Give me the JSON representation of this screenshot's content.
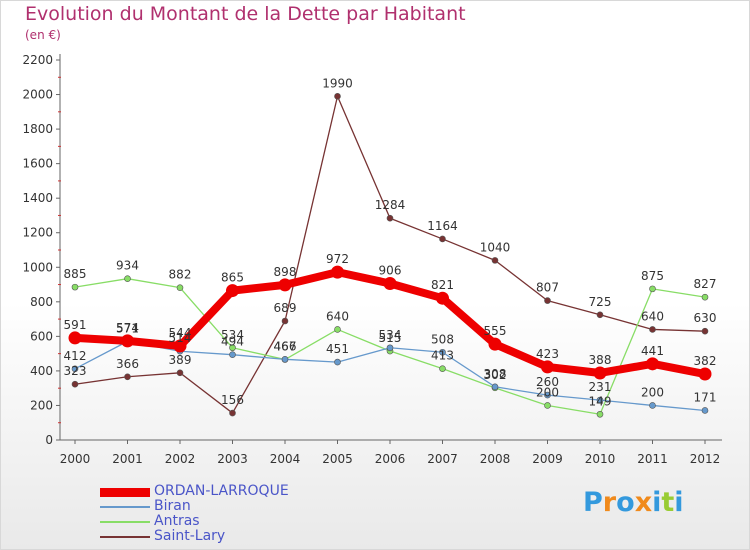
{
  "header": {
    "title": "Evolution du Montant de la Dette par Habitant",
    "subtitle": "(en €)"
  },
  "chart_data": {
    "type": "line",
    "title": "Evolution du Montant de la Dette par Habitant",
    "subtitle": "(en €)",
    "xlabel": "",
    "ylabel": "",
    "categories": [
      "2000",
      "2001",
      "2002",
      "2003",
      "2004",
      "2005",
      "2006",
      "2007",
      "2008",
      "2009",
      "2010",
      "2011",
      "2012"
    ],
    "ylim": [
      0,
      2200
    ],
    "yticks": [
      0,
      200,
      400,
      600,
      800,
      1000,
      1200,
      1400,
      1600,
      1800,
      2000,
      2200
    ],
    "grid": false,
    "legend_position": "bottom-left",
    "series": [
      {
        "name": "ORDAN-LARROQUE",
        "color": "#ee0000",
        "values": [
          591,
          574,
          544,
          865,
          898,
          972,
          906,
          821,
          555,
          423,
          388,
          441,
          382
        ]
      },
      {
        "name": "Biran",
        "color": "#6699cc",
        "values": [
          412,
          571,
          514,
          494,
          467,
          451,
          534,
          508,
          308,
          260,
          231,
          200,
          171
        ]
      },
      {
        "name": "Antras",
        "color": "#88dd66",
        "values": [
          885,
          934,
          882,
          534,
          466,
          640,
          515,
          413,
          302,
          200,
          149,
          875,
          827
        ]
      },
      {
        "name": "Saint-Lary",
        "color": "#773333",
        "values": [
          323,
          366,
          389,
          156,
          689,
          1990,
          1284,
          1164,
          1040,
          807,
          725,
          640,
          630
        ]
      }
    ]
  },
  "logo": {
    "letters": [
      "P",
      "r",
      "o",
      "x",
      "i",
      "t",
      "i"
    ],
    "colors": [
      "#3399dd",
      "#f08a1c",
      "#3399dd",
      "#f08a1c",
      "#3399dd",
      "#99cc33",
      "#3399dd"
    ]
  }
}
